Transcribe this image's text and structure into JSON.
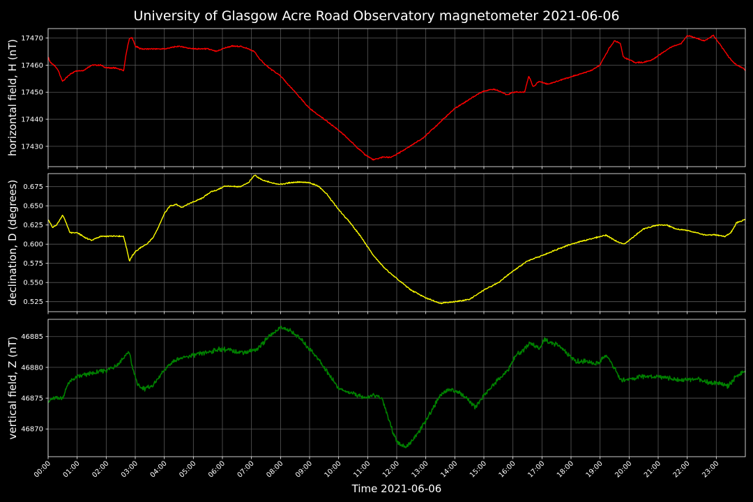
{
  "title": "University of Glasgow Acre Road Observatory magnetometer 2021-06-06",
  "xlabel": "Time 2021-06-06",
  "x_ticks": [
    "00:00",
    "01:00",
    "02:00",
    "03:00",
    "04:00",
    "05:00",
    "06:00",
    "07:00",
    "08:00",
    "09:00",
    "10:00",
    "11:00",
    "12:00",
    "13:00",
    "14:00",
    "15:00",
    "16:00",
    "17:00",
    "18:00",
    "19:00",
    "20:00",
    "21:00",
    "22:00",
    "23:00"
  ],
  "colors": {
    "background": "#000000",
    "text": "#ffffff",
    "grid": "#5a5a5a",
    "spine": "#ffffff"
  },
  "chart_data": [
    {
      "type": "line",
      "ylabel": "horizontal field, H (nT)",
      "color": "#ff0000",
      "ylim": [
        17422.5,
        17473.5
      ],
      "yticks": [
        17430,
        17440,
        17450,
        17460,
        17470
      ],
      "grid": true,
      "x_range_hours": [
        0,
        24
      ],
      "series": [
        {
          "x": [
            0,
            0.08,
            0.2,
            0.35,
            0.5,
            0.6,
            0.8,
            1.0,
            1.2,
            1.5,
            1.8,
            2.0,
            2.3,
            2.6,
            2.7,
            2.8,
            2.9,
            3.0,
            3.2,
            3.5,
            4.0,
            4.5,
            5.0,
            5.5,
            5.8,
            6.0,
            6.3,
            6.6,
            6.9,
            7.1,
            7.3,
            7.6,
            8.0,
            8.5,
            9.0,
            9.5,
            10.0,
            10.3,
            10.6,
            10.9,
            11.2,
            11.5,
            11.8,
            12.0,
            12.3,
            12.6,
            12.9,
            13.2,
            13.6,
            14.0,
            14.3,
            14.6,
            14.9,
            15.2,
            15.4,
            15.6,
            15.8,
            16.0,
            16.2,
            16.4,
            16.55,
            16.7,
            16.9,
            17.2,
            17.5,
            17.8,
            18.1,
            18.4,
            18.7,
            19.0,
            19.1,
            19.3,
            19.5,
            19.7,
            19.8,
            20.0,
            20.2,
            20.5,
            20.8,
            21.2,
            21.5,
            21.8,
            22.0,
            22.3,
            22.6,
            22.9,
            23.1,
            23.3,
            23.5,
            23.7,
            23.9,
            24.0
          ],
          "y": [
            17463,
            17461,
            17460,
            17458,
            17454,
            17455,
            17457,
            17458,
            17458,
            17460,
            17460,
            17459,
            17459,
            17458,
            17465,
            17470,
            17470,
            17467,
            17466,
            17466,
            17466,
            17467,
            17466,
            17466,
            17465,
            17466,
            17467,
            17467,
            17466,
            17465,
            17462,
            17459,
            17456,
            17450,
            17444,
            17440,
            17436,
            17433,
            17430,
            17427,
            17425,
            17426,
            17426,
            17427,
            17429,
            17431,
            17433,
            17436,
            17440,
            17444,
            17446,
            17448,
            17450,
            17451,
            17451,
            17450,
            17449,
            17450,
            17450,
            17450,
            17456,
            17452,
            17454,
            17453,
            17454,
            17455,
            17456,
            17457,
            17458,
            17460,
            17462,
            17466,
            17469,
            17468,
            17463,
            17462,
            17461,
            17461,
            17462,
            17465,
            17467,
            17468,
            17471,
            17470,
            17469,
            17471,
            17468,
            17465,
            17462,
            17460,
            17459,
            17458
          ]
        }
      ]
    },
    {
      "type": "line",
      "ylabel": "declination, D (degrees)",
      "color": "#ffff00",
      "ylim": [
        0.512,
        0.692
      ],
      "yticks": [
        0.525,
        0.55,
        0.575,
        0.6,
        0.625,
        0.65,
        0.675
      ],
      "ytick_labels": [
        "0.525",
        "0.550",
        "0.575",
        "0.600",
        "0.625",
        "0.650",
        "0.675"
      ],
      "grid": true,
      "x_range_hours": [
        0,
        24
      ],
      "series": [
        {
          "x": [
            0,
            0.15,
            0.3,
            0.5,
            0.6,
            0.75,
            1.0,
            1.3,
            1.5,
            1.8,
            2.0,
            2.3,
            2.6,
            2.7,
            2.8,
            2.9,
            3.0,
            3.2,
            3.4,
            3.6,
            3.8,
            4.0,
            4.2,
            4.4,
            4.6,
            4.8,
            5.0,
            5.3,
            5.6,
            5.9,
            6.1,
            6.3,
            6.6,
            6.9,
            7.1,
            7.4,
            7.7,
            8.0,
            8.3,
            8.6,
            9.0,
            9.3,
            9.6,
            10.0,
            10.4,
            10.8,
            11.2,
            11.6,
            12.0,
            12.5,
            13.0,
            13.5,
            14.0,
            14.5,
            15.0,
            15.5,
            16.0,
            16.5,
            17.0,
            17.5,
            18.0,
            18.5,
            19.0,
            19.2,
            19.5,
            19.8,
            20.0,
            20.5,
            21.0,
            21.3,
            21.6,
            22.0,
            22.3,
            22.6,
            23.0,
            23.3,
            23.5,
            23.7,
            24.0
          ],
          "y": [
            0.632,
            0.622,
            0.625,
            0.638,
            0.63,
            0.615,
            0.615,
            0.608,
            0.605,
            0.61,
            0.61,
            0.611,
            0.61,
            0.595,
            0.578,
            0.585,
            0.59,
            0.596,
            0.6,
            0.608,
            0.622,
            0.64,
            0.65,
            0.652,
            0.648,
            0.652,
            0.655,
            0.66,
            0.668,
            0.672,
            0.676,
            0.675,
            0.675,
            0.68,
            0.69,
            0.683,
            0.68,
            0.678,
            0.68,
            0.681,
            0.68,
            0.676,
            0.665,
            0.645,
            0.628,
            0.608,
            0.585,
            0.568,
            0.555,
            0.54,
            0.53,
            0.523,
            0.525,
            0.528,
            0.54,
            0.55,
            0.565,
            0.578,
            0.585,
            0.593,
            0.6,
            0.605,
            0.61,
            0.612,
            0.605,
            0.6,
            0.605,
            0.62,
            0.625,
            0.625,
            0.62,
            0.618,
            0.615,
            0.612,
            0.612,
            0.61,
            0.615,
            0.628,
            0.632
          ]
        }
      ]
    },
    {
      "type": "line",
      "ylabel": "vertical field, Z (nT)",
      "color": "#008000",
      "ylim": [
        46865.5,
        46887.8
      ],
      "yticks": [
        46870,
        46875,
        46880,
        46885
      ],
      "grid": true,
      "x_range_hours": [
        0,
        24
      ],
      "series": [
        {
          "x": [
            0,
            0.2,
            0.5,
            0.7,
            1.0,
            1.5,
            2.0,
            2.4,
            2.7,
            2.8,
            2.9,
            3.1,
            3.3,
            3.6,
            4.0,
            4.3,
            4.6,
            5.0,
            5.5,
            6.0,
            6.5,
            6.9,
            7.2,
            7.6,
            8.0,
            8.3,
            8.6,
            8.9,
            9.2,
            9.5,
            9.8,
            10.0,
            10.3,
            10.6,
            10.9,
            11.2,
            11.5,
            11.7,
            11.9,
            12.1,
            12.3,
            12.6,
            12.9,
            13.2,
            13.5,
            13.8,
            14.1,
            14.4,
            14.7,
            15.0,
            15.3,
            15.6,
            15.9,
            16.1,
            16.3,
            16.6,
            16.9,
            17.1,
            17.3,
            17.6,
            17.9,
            18.2,
            18.5,
            18.8,
            19.0,
            19.2,
            19.5,
            19.7,
            20.0,
            20.4,
            20.8,
            21.2,
            21.6,
            22.0,
            22.4,
            22.8,
            23.1,
            23.4,
            23.7,
            24.0
          ],
          "y": [
            46874.5,
            46875,
            46875,
            46877.5,
            46878.5,
            46879,
            46879.5,
            46880.5,
            46882,
            46882.5,
            46880,
            46877,
            46876.5,
            46877,
            46879.5,
            46881,
            46881.5,
            46882,
            46882.5,
            46883,
            46882.5,
            46882.5,
            46883,
            46885,
            46886.5,
            46886,
            46885,
            46883.5,
            46882,
            46880,
            46878,
            46876.5,
            46876,
            46875.5,
            46875,
            46875.5,
            46875,
            46872,
            46869,
            46867.5,
            46867,
            46868.5,
            46870.5,
            46873,
            46875.5,
            46876.5,
            46876,
            46875,
            46873.5,
            46875.5,
            46877,
            46878.5,
            46880,
            46882,
            46882.5,
            46884,
            46883,
            46884.5,
            46884,
            46883.5,
            46882,
            46881,
            46881,
            46880.5,
            46881,
            46882,
            46880,
            46878,
            46878,
            46878.5,
            46878.5,
            46878.5,
            46878,
            46878,
            46878,
            46877.5,
            46877.5,
            46877,
            46878.5,
            46879.5
          ]
        }
      ]
    }
  ]
}
